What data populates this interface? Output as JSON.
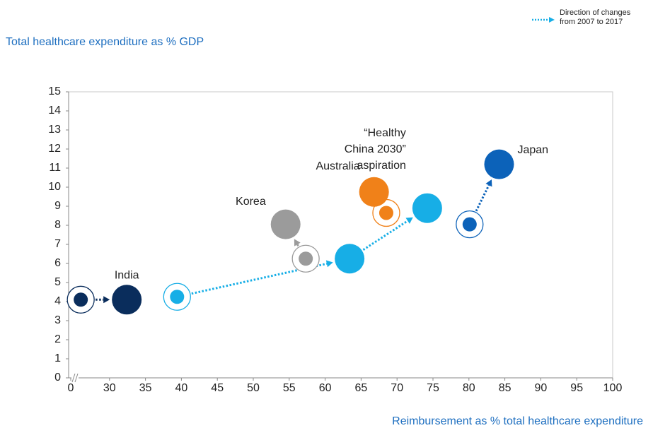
{
  "chart_data": {
    "type": "bubble",
    "title": "Total healthcare expenditure as % GDP",
    "x_label": "Reimbursement as % total healthcare expenditure",
    "legend_lines": [
      "Direction of changes",
      "from 2007 to 2017"
    ],
    "legend_color": "#17aee6",
    "xlim": [
      0,
      100
    ],
    "x_break": [
      0,
      25
    ],
    "xticks": [
      0,
      30,
      35,
      40,
      45,
      50,
      55,
      60,
      65,
      70,
      75,
      80,
      85,
      90,
      95,
      100
    ],
    "ylim": [
      0,
      15
    ],
    "yticks": [
      0,
      1,
      2,
      3,
      4,
      5,
      6,
      7,
      8,
      9,
      10,
      11,
      12,
      13,
      14,
      15
    ],
    "series": [
      {
        "color": "#0a2d5c",
        "x": [
          26,
          32.4
        ],
        "values": [
          4.1,
          4.1
        ],
        "point_labels": [
          null,
          [
            "India"
          ]
        ]
      },
      {
        "color": "#17aee6",
        "x": [
          39.4,
          63.4,
          74.2
        ],
        "values": [
          4.25,
          6.25,
          8.9
        ],
        "point_labels": [
          null,
          null,
          [
            "“Healthy",
            "China 2030”",
            "aspiration"
          ]
        ]
      },
      {
        "color": "#9b9b9b",
        "x": [
          57.3,
          54.5
        ],
        "values": [
          6.25,
          8.05
        ],
        "point_labels": [
          null,
          [
            "Korea"
          ]
        ]
      },
      {
        "color": "#f08119",
        "x": [
          68.5,
          66.8
        ],
        "values": [
          8.65,
          9.75
        ],
        "point_labels": [
          null,
          [
            "Australia"
          ]
        ]
      },
      {
        "color": "#0c62b9",
        "x": [
          80.1,
          84.2
        ],
        "values": [
          8.05,
          11.2
        ],
        "point_labels": [
          null,
          [
            "Japan"
          ]
        ]
      }
    ]
  }
}
